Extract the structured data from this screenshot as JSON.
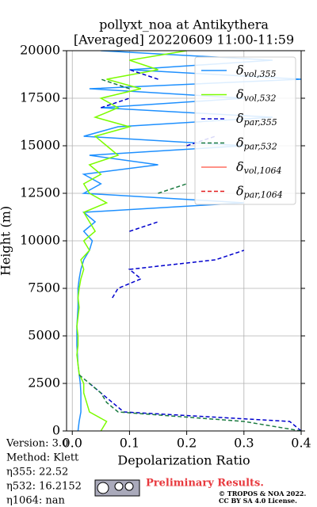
{
  "chart_data": {
    "type": "profile",
    "title": "pollyxt_noa at Antikythera",
    "subtitle": "[Averaged] 20220609 11:00-11:59",
    "x_label": "Depolarization Ratio",
    "y_label": "Height (m)",
    "xlim": [
      -0.01,
      0.4
    ],
    "xticks": [
      {
        "value": 0,
        "label": "0.0"
      },
      0.1,
      0.2,
      0.3,
      0.4
    ],
    "ylim": [
      0,
      20000
    ],
    "yticks": [
      0,
      2500,
      5000,
      7500,
      10000,
      12500,
      15000,
      17500,
      20000
    ],
    "grid": true,
    "legend": "upper right",
    "heights": [
      0,
      500,
      1000,
      1500,
      2000,
      2500,
      3000,
      3500,
      4000,
      4500,
      5000,
      5500,
      6000,
      6500,
      7000,
      7500,
      8000,
      8500,
      9000,
      9500,
      10000,
      10500,
      11000,
      11500,
      12000,
      12500,
      13000,
      13500,
      14000,
      14500,
      15000,
      15500,
      16000,
      16500,
      17000,
      17500,
      18000,
      18500,
      19000,
      19500,
      20000
    ],
    "series": [
      {
        "name": "δvol,355",
        "color": "#1e90ff",
        "dash": "solid",
        "values": [
          0.01,
          0.012,
          0.015,
          0.015,
          0.015,
          0.014,
          0.012,
          0.01,
          0.009,
          0.008,
          0.008,
          0.008,
          0.009,
          0.01,
          0.01,
          0.01,
          0.012,
          0.015,
          0.02,
          0.03,
          0.035,
          0.02,
          0.04,
          0.02,
          0.3,
          0.02,
          0.05,
          0.02,
          0.15,
          0.03,
          0.3,
          0.02,
          0.08,
          0.35,
          0.05,
          0.3,
          0.03,
          0.4,
          0.1,
          0.35,
          0.05
        ]
      },
      {
        "name": "δvol,532",
        "color": "#7cfc00",
        "dash": "solid",
        "values": [
          0.05,
          0.06,
          0.03,
          0.025,
          0.02,
          0.02,
          0.012,
          0.01,
          0.008,
          0.01,
          0.01,
          0.008,
          0.01,
          0.012,
          0.01,
          0.012,
          0.015,
          0.02,
          0.015,
          0.03,
          0.02,
          0.04,
          0.03,
          0.02,
          0.06,
          0.03,
          0.02,
          0.05,
          0.03,
          0.08,
          0.06,
          0.04,
          0.1,
          0.04,
          0.08,
          0.05,
          0.12,
          0.06,
          0.15,
          0.1,
          0.2
        ]
      },
      {
        "name": "δpar,355",
        "color": "#0000cd",
        "dash": "dashed",
        "values": [
          0.4,
          0.38,
          0.09,
          0.07,
          0.05,
          0.03,
          null,
          null,
          null,
          null,
          null,
          null,
          null,
          null,
          0.07,
          0.08,
          0.12,
          0.1,
          0.25,
          0.3,
          null,
          0.1,
          0.15,
          null,
          null,
          null,
          null,
          null,
          null,
          null,
          0.2,
          0.25,
          null,
          null,
          0.05,
          0.1,
          null,
          0.15,
          0.1,
          null,
          null
        ]
      },
      {
        "name": "δpar,532",
        "color": "#1a7a40",
        "dash": "dashed",
        "values": [
          0.4,
          0.3,
          0.08,
          0.06,
          0.05,
          0.03,
          0.01,
          null,
          null,
          null,
          null,
          null,
          null,
          null,
          null,
          null,
          null,
          null,
          null,
          null,
          null,
          null,
          null,
          null,
          null,
          0.15,
          0.2,
          null,
          null,
          null,
          null,
          null,
          null,
          null,
          null,
          null,
          0.1,
          0.05,
          null,
          null,
          null
        ]
      },
      {
        "name": "δvol,1064",
        "color": "#ff6f61",
        "dash": "solid",
        "values": [
          null,
          null,
          null,
          null,
          null,
          null,
          null,
          null,
          null,
          null,
          null,
          null,
          null,
          null,
          null,
          null,
          null,
          null,
          null,
          null,
          null,
          null,
          null,
          null,
          null,
          null,
          null,
          null,
          null,
          null,
          null,
          null,
          null,
          null,
          null,
          null,
          null,
          null,
          null,
          null,
          null
        ]
      },
      {
        "name": "δpar,1064",
        "color": "#e31a1c",
        "dash": "dashed",
        "values": [
          null,
          null,
          null,
          null,
          null,
          null,
          null,
          null,
          null,
          null,
          null,
          null,
          null,
          null,
          null,
          null,
          null,
          null,
          null,
          null,
          null,
          null,
          null,
          null,
          null,
          null,
          null,
          null,
          null,
          null,
          null,
          null,
          null,
          null,
          null,
          null,
          null,
          null,
          null,
          null,
          null
        ]
      }
    ],
    "info": [
      "Version: 3.0",
      "Method: Klett",
      "η355:  22.52",
      "η532: 16.2152",
      "η1064:    nan"
    ],
    "notice": "Preliminary Results.",
    "copyright": [
      "© TROPOS & NOA 2022.",
      "CC BY SA 4.0 License."
    ]
  }
}
